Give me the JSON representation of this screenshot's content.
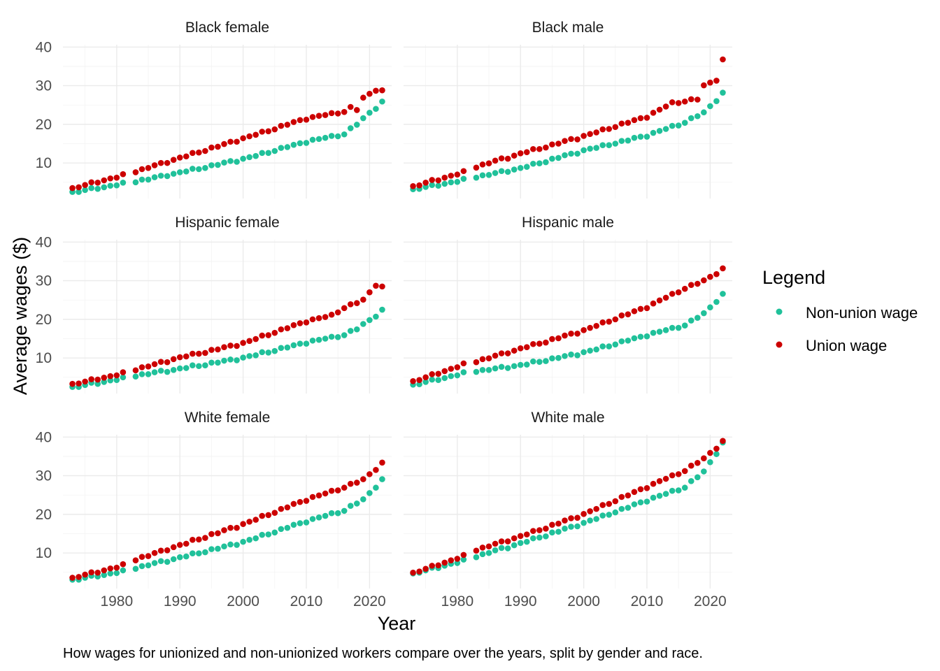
{
  "chart_data": {
    "type": "scatter",
    "xlabel": "Year",
    "ylabel": "Average wages ($)",
    "caption": "How wages for unionized and non-unionized workers compare over the years, split by gender and race.",
    "legend": {
      "title": "Legend",
      "placement": "right",
      "entries": [
        {
          "label": "Non-union wage",
          "color": "#20c19a"
        },
        {
          "label": "Union wage",
          "color": "#cc0000"
        }
      ]
    },
    "x_ticks": [
      1980,
      1990,
      2000,
      2010,
      2020
    ],
    "y_ticks": [
      10,
      20,
      30,
      40
    ],
    "xlim": [
      1971.5,
      2023.5
    ],
    "ylim": [
      0.8,
      40.6
    ],
    "grid": true,
    "missing_years": [
      1982
    ],
    "year_range": [
      1973,
      2022
    ],
    "facets": [
      {
        "title": "Black female",
        "non_union": [
          [
            1973,
            2.4
          ],
          [
            1981,
            4.6
          ],
          [
            1983,
            5.2
          ],
          [
            1990,
            7.5
          ],
          [
            2000,
            11.0
          ],
          [
            2010,
            15.5
          ],
          [
            2016,
            17.5
          ],
          [
            2018,
            20.0
          ],
          [
            2020,
            23.0
          ],
          [
            2022,
            25.7
          ]
        ],
        "union": [
          [
            1973,
            3.4
          ],
          [
            1981,
            6.8
          ],
          [
            1983,
            7.8
          ],
          [
            1990,
            11.3
          ],
          [
            2000,
            16.3
          ],
          [
            2010,
            21.5
          ],
          [
            2016,
            23.3
          ],
          [
            2017,
            24.3
          ],
          [
            2018,
            23.8
          ],
          [
            2019,
            26.8
          ],
          [
            2021,
            29.0
          ],
          [
            2022,
            28.6
          ]
        ]
      },
      {
        "title": "Black male",
        "non_union": [
          [
            1973,
            3.1
          ],
          [
            1981,
            5.6
          ],
          [
            1983,
            6.4
          ],
          [
            1990,
            8.6
          ],
          [
            2000,
            13.2
          ],
          [
            2010,
            17.1
          ],
          [
            2016,
            20.5
          ],
          [
            2019,
            23.0
          ],
          [
            2022,
            28.0
          ]
        ],
        "union": [
          [
            1973,
            3.9
          ],
          [
            1981,
            7.6
          ],
          [
            1983,
            9.0
          ],
          [
            1990,
            12.4
          ],
          [
            2000,
            16.9
          ],
          [
            2010,
            22.0
          ],
          [
            2014,
            25.5
          ],
          [
            2018,
            26.5
          ],
          [
            2019,
            30.0
          ],
          [
            2021,
            31.6
          ],
          [
            2022,
            36.6
          ]
        ]
      },
      {
        "title": "Hispanic female",
        "non_union": [
          [
            1973,
            2.4
          ],
          [
            1981,
            4.7
          ],
          [
            1983,
            5.4
          ],
          [
            1990,
            7.2
          ],
          [
            2000,
            10.0
          ],
          [
            2010,
            14.0
          ],
          [
            2016,
            16.0
          ],
          [
            2018,
            17.5
          ],
          [
            2020,
            19.8
          ],
          [
            2022,
            22.3
          ]
        ],
        "union": [
          [
            1973,
            3.2
          ],
          [
            1981,
            6.0
          ],
          [
            1983,
            7.0
          ],
          [
            1990,
            10.1
          ],
          [
            2000,
            13.8
          ],
          [
            2010,
            19.5
          ],
          [
            2014,
            21.0
          ],
          [
            2016,
            23.0
          ],
          [
            2019,
            25.0
          ],
          [
            2021,
            29.0
          ],
          [
            2022,
            28.3
          ]
        ]
      },
      {
        "title": "Hispanic male",
        "non_union": [
          [
            1973,
            3.0
          ],
          [
            1981,
            6.0
          ],
          [
            1983,
            6.6
          ],
          [
            1990,
            8.1
          ],
          [
            2000,
            11.4
          ],
          [
            2010,
            15.9
          ],
          [
            2016,
            18.5
          ],
          [
            2019,
            21.5
          ],
          [
            2022,
            26.4
          ]
        ],
        "union": [
          [
            1973,
            3.9
          ],
          [
            1981,
            8.3
          ],
          [
            1983,
            9.1
          ],
          [
            1990,
            12.4
          ],
          [
            2000,
            17.1
          ],
          [
            2010,
            23.2
          ],
          [
            2016,
            28.0
          ],
          [
            2019,
            30.0
          ],
          [
            2022,
            33.0
          ]
        ]
      },
      {
        "title": "White female",
        "non_union": [
          [
            1973,
            3.0
          ],
          [
            1981,
            5.2
          ],
          [
            1983,
            6.1
          ],
          [
            1990,
            8.8
          ],
          [
            2000,
            12.8
          ],
          [
            2010,
            18.2
          ],
          [
            2016,
            21.0
          ],
          [
            2019,
            23.8
          ],
          [
            2022,
            28.9
          ]
        ],
        "union": [
          [
            1973,
            3.5
          ],
          [
            1981,
            6.8
          ],
          [
            1983,
            8.3
          ],
          [
            1990,
            12.0
          ],
          [
            2000,
            17.4
          ],
          [
            2010,
            23.8
          ],
          [
            2016,
            27.0
          ],
          [
            2019,
            29.0
          ],
          [
            2022,
            33.2
          ]
        ]
      },
      {
        "title": "White male",
        "non_union": [
          [
            1973,
            4.6
          ],
          [
            1981,
            8.0
          ],
          [
            1983,
            9.1
          ],
          [
            1990,
            12.5
          ],
          [
            2000,
            17.7
          ],
          [
            2010,
            23.6
          ],
          [
            2016,
            27.0
          ],
          [
            2019,
            31.0
          ],
          [
            2022,
            38.4
          ]
        ],
        "union": [
          [
            1973,
            4.8
          ],
          [
            1981,
            9.2
          ],
          [
            1983,
            10.8
          ],
          [
            1990,
            14.3
          ],
          [
            2000,
            20.0
          ],
          [
            2010,
            27.1
          ],
          [
            2016,
            31.3
          ],
          [
            2019,
            34.4
          ],
          [
            2022,
            38.8
          ]
        ]
      }
    ]
  }
}
